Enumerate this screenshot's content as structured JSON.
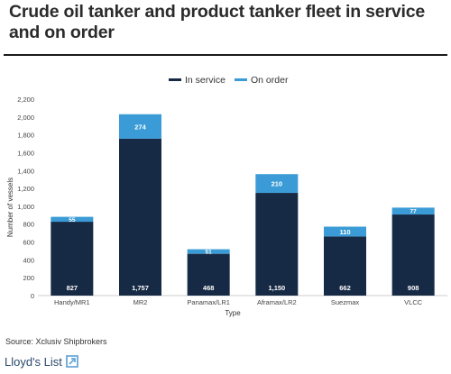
{
  "header": {
    "title": "Crude oil tanker and product tanker fleet in service and on order"
  },
  "footer": {
    "source": "Source: Xclusiv Shipbrokers",
    "logo_text": "Lloyd's List"
  },
  "colors": {
    "in_service": "#172a45",
    "on_order": "#3a9bd6"
  },
  "chart_data": {
    "type": "bar",
    "stacked": true,
    "categories": [
      "Handy/MR1",
      "MR2",
      "Panamax/LR1",
      "Aframax/LR2",
      "Suezmax",
      "VLCC"
    ],
    "series": [
      {
        "name": "In service",
        "values": [
          827,
          1757,
          468,
          1150,
          662,
          908
        ]
      },
      {
        "name": "On order",
        "values": [
          55,
          274,
          51,
          210,
          110,
          77
        ]
      }
    ],
    "on_order_labels": [
      "55",
      "274",
      "51",
      "210",
      "110",
      "77"
    ],
    "in_service_labels": [
      "827",
      "1,757",
      "468",
      "1,150",
      "662",
      "908"
    ],
    "xlabel": "Type",
    "ylabel": "Number of vessels",
    "ylim": [
      0,
      2200
    ],
    "yticks": [
      0,
      200,
      400,
      600,
      800,
      1000,
      1200,
      1400,
      1600,
      1800,
      2000,
      2200
    ],
    "ytick_labels": [
      "0",
      "200",
      "400",
      "600",
      "800",
      "1,000",
      "1,200",
      "1,400",
      "1,600",
      "1,800",
      "2,000",
      "2,200"
    ],
    "legend_position": "top-center",
    "grid": false
  }
}
